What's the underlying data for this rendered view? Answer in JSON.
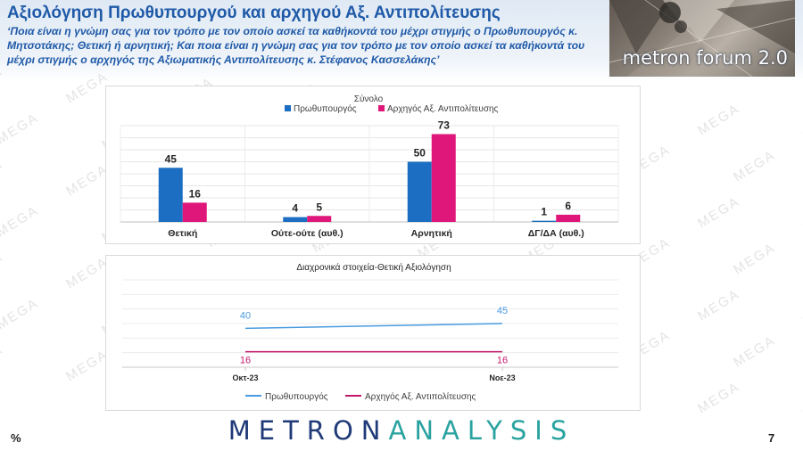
{
  "header": {
    "title": "Αξιολόγηση Πρωθυπουργού και αρχηγού Αξ. Αντιπολίτευσης",
    "question": "‘Ποια είναι η γνώμη σας για τον τρόπο με τον οποίο ασκεί τα καθήκοντά του μέχρι στιγμής ο Πρωθυπουργός κ. Μητσοτάκης; Θετική ή αρνητική; Και ποια είναι η γνώμη σας για τον τρόπο με τον οποίο ασκεί τα καθήκοντά του μέχρι στιγμής ο αρχηγός της Αξιωματικής Αντιπολίτευσης κ. Στέφανος Κασσελάκης’"
  },
  "logo": {
    "text": "metron forum 2.0"
  },
  "watermark": {
    "text": "MEGA"
  },
  "colors": {
    "pm": "#1b6ec2",
    "opp": "#e0177a",
    "pm_line": "#4a9be0",
    "opp_line": "#c2186b"
  },
  "chart_data": [
    {
      "type": "bar",
      "title": "Σύνολο",
      "categories": [
        "Θετική",
        "Ούτε-ούτε (αυθ.)",
        "Αρνητική",
        "ΔΓ/ΔΑ (αυθ.)"
      ],
      "series": [
        {
          "name": "Πρωθυπουργός",
          "values": [
            45,
            4,
            50,
            1
          ]
        },
        {
          "name": "Αρχηγός Αξ. Αντιπολίτευσης",
          "values": [
            16,
            5,
            73,
            6
          ]
        }
      ],
      "ylim": [
        0,
        80
      ],
      "grid": true,
      "legend": "top"
    },
    {
      "type": "line",
      "title": "Διαχρονικά στοιχεία-Θετική Αξιολόγηση",
      "x": [
        "Οκτ-23",
        "Νοε-23"
      ],
      "series": [
        {
          "name": "Πρωθυπουργός",
          "values": [
            40,
            45
          ]
        },
        {
          "name": "Αρχηγός Αξ. Αντιπολίτευσης",
          "values": [
            16,
            16
          ]
        }
      ],
      "grid": true,
      "legend": "bottom"
    }
  ],
  "footer": {
    "brand_part1": "METRON",
    "brand_part2": "ANALYSIS",
    "percent_sign": "%",
    "page_number": "7"
  }
}
